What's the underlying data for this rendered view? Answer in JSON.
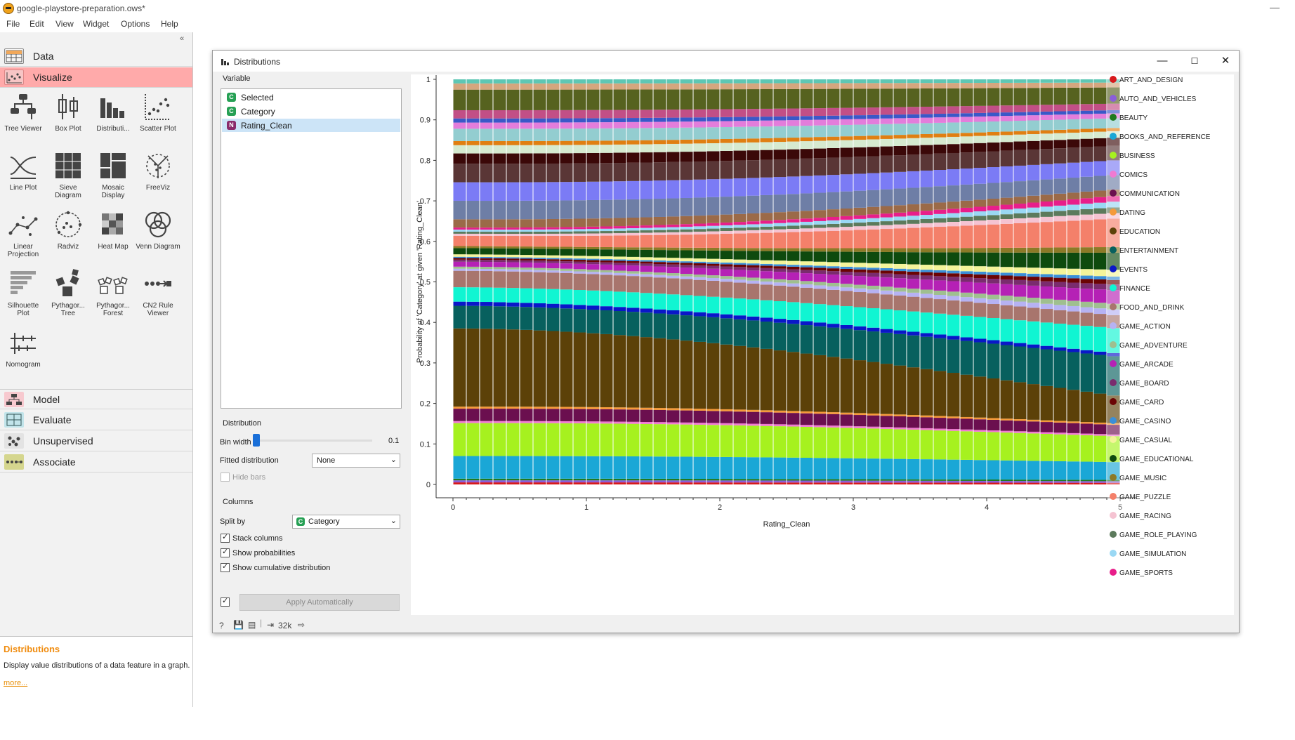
{
  "window": {
    "title": "google-playstore-preparation.ows*",
    "menu": [
      "File",
      "Edit",
      "View",
      "Widget",
      "Options",
      "Help"
    ]
  },
  "left_panel": {
    "categories": [
      {
        "label": "Data",
        "color": "#f2f2f2",
        "icon": "table-icon"
      },
      {
        "label": "Visualize",
        "color": "#ffaaaa",
        "icon": "scatter-icon"
      }
    ],
    "widgets": [
      {
        "label": "Tree Viewer",
        "icon": "tree-viewer-icon"
      },
      {
        "label": "Box Plot",
        "icon": "box-plot-icon"
      },
      {
        "label": "Distributi...",
        "icon": "distributions-icon"
      },
      {
        "label": "Scatter Plot",
        "icon": "scatter-plot-icon"
      },
      {
        "label": "Line Plot",
        "icon": "line-plot-icon"
      },
      {
        "label": "Sieve Diagram",
        "icon": "sieve-diagram-icon"
      },
      {
        "label": "Mosaic Display",
        "icon": "mosaic-display-icon"
      },
      {
        "label": "FreeViz",
        "icon": "freeviz-icon"
      },
      {
        "label": "Linear Projection",
        "icon": "linear-projection-icon"
      },
      {
        "label": "Radviz",
        "icon": "radviz-icon"
      },
      {
        "label": "Heat Map",
        "icon": "heat-map-icon"
      },
      {
        "label": "Venn Diagram",
        "icon": "venn-diagram-icon"
      },
      {
        "label": "Silhouette Plot",
        "icon": "silhouette-plot-icon"
      },
      {
        "label": "Pythagor... Tree",
        "icon": "pythagorean-tree-icon"
      },
      {
        "label": "Pythagor... Forest",
        "icon": "pythagorean-forest-icon"
      },
      {
        "label": "CN2 Rule Viewer",
        "icon": "cn2-rule-viewer-icon"
      },
      {
        "label": "Nomogram",
        "icon": "nomogram-icon"
      }
    ],
    "bottom_categories": [
      {
        "label": "Model",
        "color": "#f7c9cf"
      },
      {
        "label": "Evaluate",
        "color": "#c2e4ea"
      },
      {
        "label": "Unsupervised",
        "color": "#e3e3e3"
      },
      {
        "label": "Associate",
        "color": "#d5d68e"
      }
    ],
    "help": {
      "title": "Distributions",
      "description": "Display value distributions of a data feature in a graph.",
      "more": "more..."
    }
  },
  "dialog": {
    "title": "Distributions",
    "variable_group": "Variable",
    "variables": [
      {
        "name": "Selected",
        "type": "C",
        "color": "#26a054"
      },
      {
        "name": "Category",
        "type": "C",
        "color": "#26a054"
      },
      {
        "name": "Rating_Clean",
        "type": "N",
        "color": "#8a2a6a",
        "selected": true
      }
    ],
    "distribution_group": "Distribution",
    "bin_width_label": "Bin width",
    "bin_width_value": "0.1",
    "fitted_label": "Fitted distribution",
    "fitted_value": "None",
    "hide_bars": "Hide bars",
    "columns_group": "Columns",
    "split_by_label": "Split by",
    "split_by_value": "Category",
    "stack_columns": "Stack columns",
    "show_probabilities": "Show probabilities",
    "show_cumulative": "Show cumulative distribution",
    "apply": "Apply Automatically",
    "status_count": "32k"
  },
  "chart_data": {
    "type": "bar",
    "stacked": true,
    "xlabel": "Rating_Clean",
    "ylabel": "Probability of 'Category' at given 'Rating_Clean'",
    "xlim": [
      0,
      5
    ],
    "ylim": [
      0,
      1
    ],
    "x_ticks": [
      "0",
      "1",
      "2",
      "3",
      "4",
      "5"
    ],
    "y_ticks": [
      "0",
      "0.1",
      "0.2",
      "0.3",
      "0.4",
      "0.5",
      "0.6",
      "0.7",
      "0.8",
      "0.9",
      "1"
    ],
    "bin_width": 0.1,
    "legend": [
      {
        "name": "ART_AND_DESIGN",
        "color": "#d7191c"
      },
      {
        "name": "AUTO_AND_VEHICLES",
        "color": "#8a5fd9"
      },
      {
        "name": "BEAUTY",
        "color": "#1f7a1f"
      },
      {
        "name": "BOOKS_AND_REFERENCE",
        "color": "#1aa7d6"
      },
      {
        "name": "BUSINESS",
        "color": "#a6f11f"
      },
      {
        "name": "COMICS",
        "color": "#f07ad2"
      },
      {
        "name": "COMMUNICATION",
        "color": "#6b0f4f"
      },
      {
        "name": "DATING",
        "color": "#f59a3a"
      },
      {
        "name": "EDUCATION",
        "color": "#5c4108"
      },
      {
        "name": "ENTERTAINMENT",
        "color": "#07605e"
      },
      {
        "name": "EVENTS",
        "color": "#0a17c8"
      },
      {
        "name": "FINANCE",
        "color": "#10f5d2"
      },
      {
        "name": "FOOD_AND_DRINK",
        "color": "#a8756d"
      },
      {
        "name": "GAME_ACTION",
        "color": "#b6b2f3"
      },
      {
        "name": "GAME_ADVENTURE",
        "color": "#9fbf8f"
      },
      {
        "name": "GAME_ARCADE",
        "color": "#b521b5"
      },
      {
        "name": "GAME_BOARD",
        "color": "#7a2c6e"
      },
      {
        "name": "GAME_CARD",
        "color": "#6b0404"
      },
      {
        "name": "GAME_CASINO",
        "color": "#3a8fd8"
      },
      {
        "name": "GAME_CASUAL",
        "color": "#f4f49a"
      },
      {
        "name": "GAME_EDUCATIONAL",
        "color": "#0e4a0e"
      },
      {
        "name": "GAME_MUSIC",
        "color": "#8c7a27"
      },
      {
        "name": "GAME_PUZZLE",
        "color": "#f4806a"
      },
      {
        "name": "GAME_RACING",
        "color": "#f5c3d2"
      },
      {
        "name": "GAME_ROLE_PLAYING",
        "color": "#5c7a5c"
      },
      {
        "name": "GAME_SIMULATION",
        "color": "#9ad8f4"
      },
      {
        "name": "GAME_SPORTS",
        "color": "#e81e8a"
      }
    ],
    "series_first_bin": [
      {
        "name": "ART_AND_DESIGN",
        "color": "#d7191c",
        "value": 0.005
      },
      {
        "name": "AUTO_AND_VEHICLES",
        "color": "#8a5fd9",
        "value": 0.005
      },
      {
        "name": "BEAUTY",
        "color": "#1f7a1f",
        "value": 0.004
      },
      {
        "name": "BOOKS_AND_REFERENCE",
        "color": "#1aa7d6",
        "value": 0.055
      },
      {
        "name": "BUSINESS",
        "color": "#a6f11f",
        "value": 0.08
      },
      {
        "name": "COMICS",
        "color": "#f07ad2",
        "value": 0.005
      },
      {
        "name": "COMMUNICATION",
        "color": "#6b0f4f",
        "value": 0.03
      },
      {
        "name": "DATING",
        "color": "#f59a3a",
        "value": 0.005
      },
      {
        "name": "EDUCATION",
        "color": "#5c4108",
        "value": 0.19
      },
      {
        "name": "ENTERTAINMENT",
        "color": "#07605e",
        "value": 0.055
      },
      {
        "name": "EVENTS",
        "color": "#0a17c8",
        "value": 0.01
      },
      {
        "name": "FINANCE",
        "color": "#10f5d2",
        "value": 0.035
      },
      {
        "name": "FOOD_AND_DRINK",
        "color": "#a8756d",
        "value": 0.04
      },
      {
        "name": "GAME_ACTION",
        "color": "#b6b2f3",
        "value": 0.005
      },
      {
        "name": "GAME_ADVENTURE",
        "color": "#9fbf8f",
        "value": 0.005
      },
      {
        "name": "GAME_ARCADE",
        "color": "#b521b5",
        "value": 0.012
      },
      {
        "name": "GAME_BOARD",
        "color": "#7a2c6e",
        "value": 0.005
      },
      {
        "name": "GAME_CARD",
        "color": "#6b0404",
        "value": 0.004
      },
      {
        "name": "GAME_CASINO",
        "color": "#3a8fd8",
        "value": 0.003
      },
      {
        "name": "GAME_CASUAL",
        "color": "#f4f49a",
        "value": 0.006
      },
      {
        "name": "GAME_EDUCATIONAL",
        "color": "#0e4a0e",
        "value": 0.015
      },
      {
        "name": "GAME_MUSIC",
        "color": "#8c7a27",
        "value": 0.005
      },
      {
        "name": "GAME_PUZZLE",
        "color": "#f4806a",
        "value": 0.025
      },
      {
        "name": "GAME_RACING",
        "color": "#f5c3d2",
        "value": 0.005
      },
      {
        "name": "GAME_ROLE_PLAYING",
        "color": "#5c7a5c",
        "value": 0.005
      },
      {
        "name": "GAME_SIMULATION",
        "color": "#9ad8f4",
        "value": 0.005
      },
      {
        "name": "GAME_SPORTS",
        "color": "#e81e8a",
        "value": 0.005
      }
    ],
    "top_segments_first_bin": [
      {
        "color": "#9b6a48",
        "value": 0.02
      },
      {
        "color": "#6e7ea6",
        "value": 0.045
      },
      {
        "color": "#7b7bf5",
        "value": 0.045
      },
      {
        "color": "#5a3636",
        "value": 0.045
      },
      {
        "color": "#3b0808",
        "value": 0.025
      },
      {
        "color": "#d6ead0",
        "value": 0.02
      },
      {
        "color": "#e07f12",
        "value": 0.01
      },
      {
        "color": "#93cdd0",
        "value": 0.03
      },
      {
        "color": "#e37ddb",
        "value": 0.015
      },
      {
        "color": "#3a58c8",
        "value": 0.01
      },
      {
        "color": "#c24f86",
        "value": 0.02
      },
      {
        "color": "#56621f",
        "value": 0.05
      },
      {
        "color": "#d4a67e",
        "value": 0.015
      },
      {
        "color": "#5ec7b4",
        "value": 0.01
      }
    ]
  }
}
